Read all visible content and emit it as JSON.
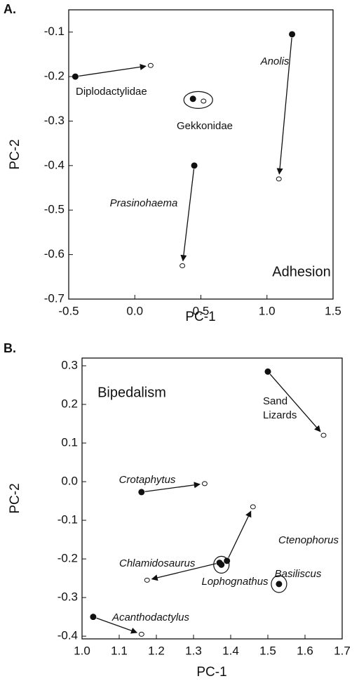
{
  "chart_data": [
    {
      "type": "scatter",
      "panel_label": "A.",
      "annotation": "Adhesion",
      "x_label": "PC-1",
      "y_label": "PC-2",
      "xlim": [
        -0.5,
        1.5
      ],
      "xticks": [
        -0.5,
        {
          "value": 0,
          "label": "0.0"
        },
        0.5,
        {
          "value": 1,
          "label": "1.0"
        },
        1.5
      ],
      "ylim": [
        -0.7,
        -0.05
      ],
      "yticks": [
        -0.1,
        -0.2,
        -0.3,
        -0.4,
        -0.5,
        -0.6,
        -0.7
      ],
      "points": [
        {
          "label": "Diplodactylidae",
          "italic": false,
          "circled": false,
          "x": [
            -0.45,
            0.12
          ],
          "y": [
            -0.2,
            -0.175
          ]
        },
        {
          "label": "Gekkonidae",
          "italic": false,
          "circled": true,
          "x": [
            0.44,
            0.52
          ],
          "y": [
            -0.25,
            -0.255
          ]
        },
        {
          "label": "Anolis",
          "italic": true,
          "circled": false,
          "x": [
            1.19,
            1.09
          ],
          "y": [
            -0.105,
            -0.43
          ]
        },
        {
          "label": "Prasinohaema",
          "italic": true,
          "circled": false,
          "x": [
            0.45,
            0.36
          ],
          "y": [
            -0.4,
            -0.625
          ]
        }
      ]
    },
    {
      "type": "scatter",
      "panel_label": "B.",
      "annotation": "Bipedalism",
      "x_label": "PC-1",
      "y_label": "PC-2",
      "xlim": [
        1.0,
        1.7
      ],
      "xticks": [
        {
          "value": 1,
          "label": "1.0"
        },
        1.1,
        1.2,
        1.3,
        1.4,
        1.5,
        1.6,
        1.7
      ],
      "ylim": [
        -0.407,
        0.32
      ],
      "yticks": [
        0.3,
        0.2,
        0.1,
        {
          "value": 0,
          "label": "0.0"
        },
        -0.1,
        -0.2,
        -0.3,
        -0.4
      ],
      "points": [
        {
          "label": [
            "Sand",
            "Lizards"
          ],
          "italic": false,
          "circled": false,
          "x": [
            1.5,
            1.65
          ],
          "y": [
            0.285,
            0.12
          ]
        },
        {
          "label": "Crotaphytus",
          "italic": true,
          "circled": false,
          "x": [
            1.16,
            1.33
          ],
          "y": [
            -0.027,
            -0.005
          ]
        },
        {
          "label": "Ctenophorus",
          "italic": true,
          "circled": false,
          "x": [
            1.39,
            1.46
          ],
          "y": [
            -0.205,
            -0.065
          ]
        },
        {
          "label": "Chlamidosaurus",
          "italic": true,
          "circled": false,
          "x": [
            1.37,
            1.175
          ],
          "y": [
            -0.21,
            -0.255
          ]
        },
        {
          "label": "Lophognathus",
          "italic": true,
          "circled": true,
          "x": [
            1.375
          ],
          "y": [
            -0.215
          ]
        },
        {
          "label": "Basiliscus",
          "italic": true,
          "circled": true,
          "x": [
            1.53
          ],
          "y": [
            -0.265
          ]
        },
        {
          "label": "Acanthodactylus",
          "italic": true,
          "circled": false,
          "x": [
            1.03,
            1.16
          ],
          "y": [
            -0.35,
            -0.395
          ]
        }
      ]
    }
  ]
}
